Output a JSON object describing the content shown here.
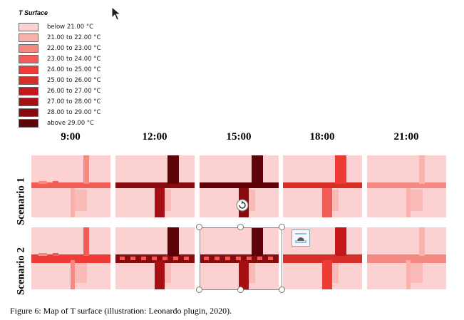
{
  "legend": {
    "title": "T Surface",
    "items": [
      {
        "label": "below 21.00 °C",
        "color": "#fcd1d1"
      },
      {
        "label": "21.00 to 22.00 °C",
        "color": "#f9b1ab"
      },
      {
        "label": "22.00 to 23.00 °C",
        "color": "#f58a82"
      },
      {
        "label": "23.00 to 24.00 °C",
        "color": "#f25c57"
      },
      {
        "label": "24.00 to 25.00 °C",
        "color": "#ef3b36"
      },
      {
        "label": "25.00 to 26.00 °C",
        "color": "#d82e28"
      },
      {
        "label": "26.00 to 27.00 °C",
        "color": "#c4161b"
      },
      {
        "label": "27.00 to 28.00 °C",
        "color": "#a60f14"
      },
      {
        "label": "28.00 to 29.00 °C",
        "color": "#860c10"
      },
      {
        "label": "above 29.00 °C",
        "color": "#5e0408"
      }
    ]
  },
  "columns": [
    "9:00",
    "12:00",
    "15:00",
    "18:00",
    "21:00"
  ],
  "rows": [
    "Scenario 1",
    "Scenario 2"
  ],
  "caption": "Figure 6: Map of T surface (illustration: Leonardo plugin, 2020)."
}
